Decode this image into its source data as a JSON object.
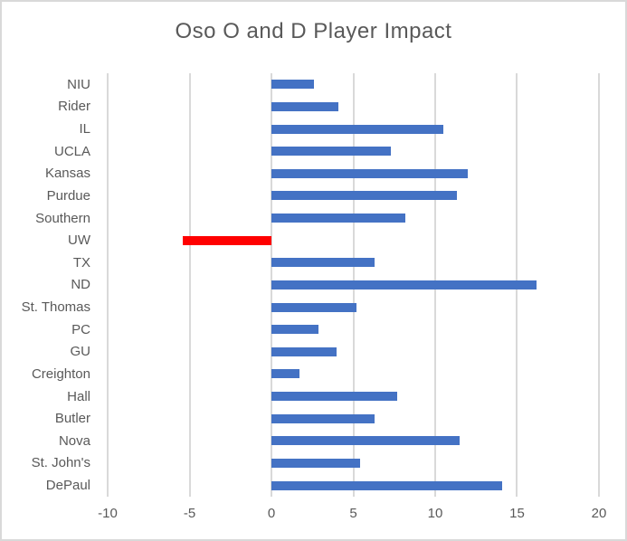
{
  "chart_data": {
    "type": "bar",
    "orientation": "horizontal",
    "title": "Oso O and D Player Impact",
    "categories": [
      "NIU",
      "Rider",
      "IL",
      "UCLA",
      "Kansas",
      "Purdue",
      "Southern",
      "UW",
      "TX",
      "ND",
      "St. Thomas",
      "PC",
      "GU",
      "Creighton",
      "Hall",
      "Butler",
      "Nova",
      "St. John's",
      "DePaul"
    ],
    "values": [
      2.6,
      4.1,
      10.5,
      7.3,
      12.0,
      11.3,
      8.2,
      -5.4,
      6.3,
      16.2,
      5.2,
      2.9,
      4.0,
      1.7,
      7.7,
      6.3,
      11.5,
      5.4,
      14.1
    ],
    "xlabel": "",
    "ylabel": "",
    "xlim": [
      -10,
      20
    ],
    "xticks": [
      -10,
      -5,
      0,
      5,
      10,
      15,
      20
    ],
    "xtick_labels": [
      "-10",
      "-5",
      "0",
      "5",
      "10",
      "15",
      "20"
    ],
    "grid": true,
    "legend": "none",
    "bar_color_default": "#4472C4",
    "highlight": {
      "category": "UW",
      "color": "#FF0000"
    },
    "colors": {
      "grid": "#D9D9D9",
      "text": "#595959",
      "border": "#D9D9D9",
      "background": "#FFFFFF"
    }
  }
}
